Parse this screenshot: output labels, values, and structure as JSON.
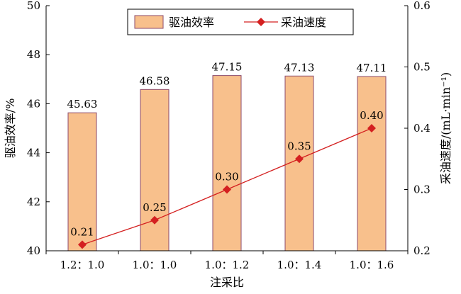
{
  "chart_data": {
    "type": "bar+line",
    "categories": [
      "1.2：1.0",
      "1.0：1.0",
      "1.0：1.2",
      "1.0：1.4",
      "1.0：1.6"
    ],
    "xlabel": "注采比",
    "y_left": {
      "label": "驱油效率/%",
      "lim": [
        40,
        50
      ],
      "ticks": [
        "40",
        "42",
        "44",
        "46",
        "48",
        "50"
      ]
    },
    "y_right": {
      "label": "采油速度/(mL·min⁻¹)",
      "lim": [
        0.2,
        0.6
      ],
      "ticks": [
        "0.2",
        "0.3",
        "0.4",
        "0.5",
        "0.6"
      ]
    },
    "series": [
      {
        "name": "驱油效率",
        "kind": "bar",
        "axis": "left",
        "values": [
          45.63,
          46.58,
          47.15,
          47.13,
          47.11
        ],
        "labels": [
          "45.63",
          "46.58",
          "47.15",
          "47.13",
          "47.11"
        ],
        "color": "#F8C08C",
        "edge_color": "#8B4A6B"
      },
      {
        "name": "采油速度",
        "kind": "line",
        "axis": "right",
        "values": [
          0.21,
          0.25,
          0.3,
          0.35,
          0.4
        ],
        "labels": [
          "0.21",
          "0.25",
          "0.30",
          "0.35",
          "0.40"
        ],
        "color": "#D42020",
        "marker": "diamond"
      }
    ],
    "legend": "top-center",
    "grid": false
  }
}
